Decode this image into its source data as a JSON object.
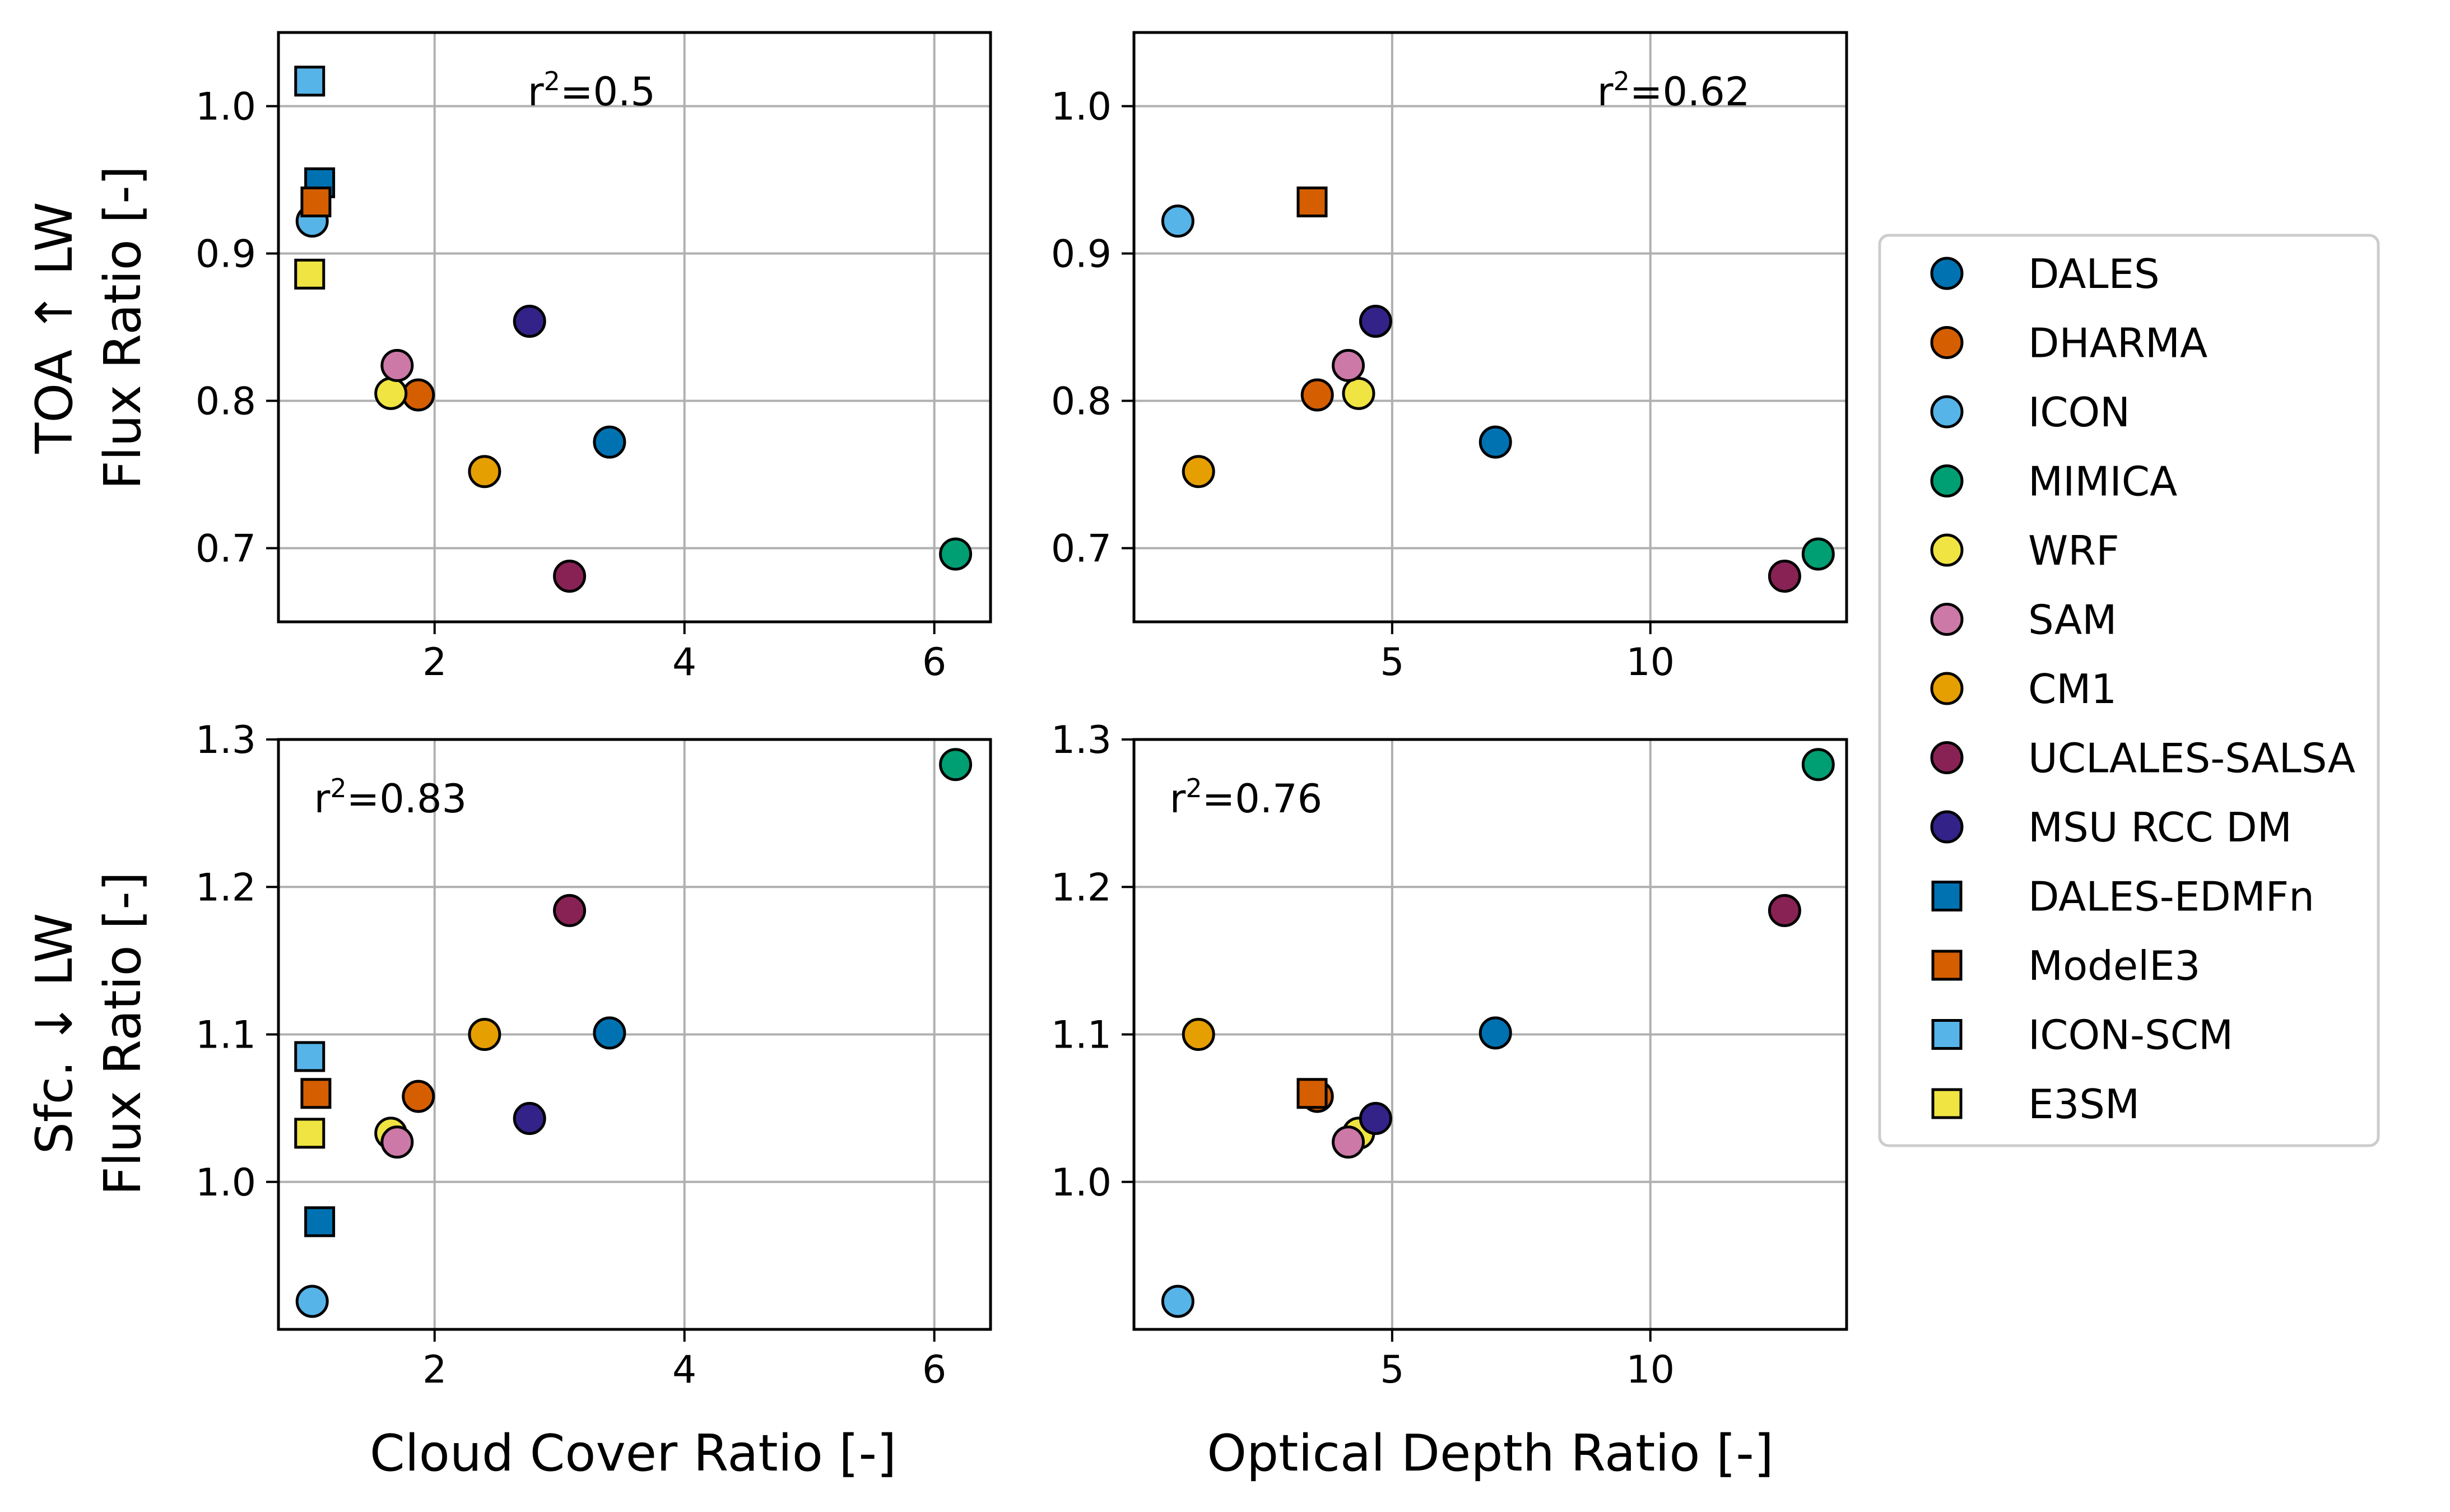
{
  "chart_data": {
    "type": "scatter",
    "grid": true,
    "legend_placement": "right",
    "rows": [
      {
        "ylabel_lines": [
          "TOA ↑ LW",
          "Flux Ratio [-]"
        ]
      },
      {
        "ylabel_lines": [
          "Sfc. ↓ LW",
          "Flux Ratio [-]"
        ]
      }
    ],
    "columns": [
      {
        "xlabel": "",
        "xlabel_bottom": "Cloud Cover Ratio [-]"
      },
      {
        "xlabel": "",
        "xlabel_bottom": "Optical Depth Ratio [-]"
      }
    ],
    "series": [
      {
        "name": "DALES",
        "marker": "circle",
        "color": "#0072B2",
        "cloud_cover": 3.4,
        "optical_depth": 7.0,
        "toa": 0.772,
        "sfc": 1.101
      },
      {
        "name": "DHARMA",
        "marker": "circle",
        "color": "#D55E00",
        "cloud_cover": 1.87,
        "optical_depth": 3.55,
        "toa": 0.804,
        "sfc": 1.058
      },
      {
        "name": "ICON",
        "marker": "circle",
        "color": "#56B4E9",
        "cloud_cover": 1.02,
        "optical_depth": 0.85,
        "toa": 0.922,
        "sfc": 0.919
      },
      {
        "name": "MIMICA",
        "marker": "circle",
        "color": "#009E73",
        "cloud_cover": 6.17,
        "optical_depth": 13.25,
        "toa": 0.696,
        "sfc": 1.283
      },
      {
        "name": "WRF",
        "marker": "circle",
        "color": "#F0E442",
        "cloud_cover": 1.65,
        "optical_depth": 4.35,
        "toa": 0.805,
        "sfc": 1.033
      },
      {
        "name": "SAM",
        "marker": "circle",
        "color": "#CC79A7",
        "cloud_cover": 1.7,
        "optical_depth": 4.15,
        "toa": 0.824,
        "sfc": 1.027
      },
      {
        "name": "CM1",
        "marker": "circle",
        "color": "#E69F00",
        "cloud_cover": 2.4,
        "optical_depth": 1.25,
        "toa": 0.752,
        "sfc": 1.1
      },
      {
        "name": "UCLALES-SALSA",
        "marker": "circle",
        "color": "#882255",
        "cloud_cover": 3.08,
        "optical_depth": 12.6,
        "toa": 0.681,
        "sfc": 1.184
      },
      {
        "name": "MSU RCC DM",
        "marker": "circle",
        "color": "#332288",
        "cloud_cover": 2.76,
        "optical_depth": 4.68,
        "toa": 0.854,
        "sfc": 1.043
      },
      {
        "name": "DALES-EDMFn",
        "marker": "square",
        "color": "#0072B2",
        "cloud_cover": 1.08,
        "optical_depth": null,
        "toa": 0.948,
        "sfc": 0.973
      },
      {
        "name": "ModelE3",
        "marker": "square",
        "color": "#D55E00",
        "cloud_cover": 1.05,
        "optical_depth": 3.45,
        "toa": 0.935,
        "sfc": 1.06
      },
      {
        "name": "ICON-SCM",
        "marker": "square",
        "color": "#56B4E9",
        "cloud_cover": 1.0,
        "optical_depth": null,
        "toa": 1.017,
        "sfc": 1.085
      },
      {
        "name": "E3SM",
        "marker": "square",
        "color": "#F0E442",
        "cloud_cover": 1.0,
        "optical_depth": null,
        "toa": 0.886,
        "sfc": 1.033
      }
    ],
    "panels": [
      {
        "row": 0,
        "col": 0,
        "x_key": "cloud_cover",
        "y_key": "toa",
        "xlim": [
          0.75,
          6.45
        ],
        "ylim": [
          0.65,
          1.05
        ],
        "xticks": [
          2,
          4,
          6
        ],
        "yticks": [
          0.7,
          0.8,
          0.9,
          1.0
        ],
        "xtick_labels": [
          "2",
          "4",
          "6"
        ],
        "ytick_labels": [
          "0.7",
          "0.8",
          "0.9",
          "1.0"
        ],
        "r2_label": "r²=0.5",
        "r2_prefix": "r",
        "r2_sup": "2",
        "r2_value": "=0.5",
        "r2_pos": "top-center"
      },
      {
        "row": 0,
        "col": 1,
        "x_key": "optical_depth",
        "y_key": "toa",
        "xlim": [
          0.0,
          13.8
        ],
        "ylim": [
          0.65,
          1.05
        ],
        "xticks": [
          5,
          10
        ],
        "yticks": [
          0.7,
          0.8,
          0.9,
          1.0
        ],
        "xtick_labels": [
          "5",
          "10"
        ],
        "ytick_labels": [
          "0.7",
          "0.8",
          "0.9",
          "1.0"
        ],
        "r2_label": "r²=0.62",
        "r2_prefix": "r",
        "r2_sup": "2",
        "r2_value": "=0.62",
        "r2_pos": "top-right"
      },
      {
        "row": 1,
        "col": 0,
        "x_key": "cloud_cover",
        "y_key": "sfc",
        "xlim": [
          0.75,
          6.45
        ],
        "ylim": [
          0.9,
          1.3
        ],
        "xticks": [
          2,
          4,
          6
        ],
        "yticks": [
          1.0,
          1.1,
          1.2,
          1.3
        ],
        "xtick_labels": [
          "2",
          "4",
          "6"
        ],
        "ytick_labels": [
          "1.0",
          "1.1",
          "1.2",
          "1.3"
        ],
        "r2_label": "r²=0.83",
        "r2_prefix": "r",
        "r2_sup": "2",
        "r2_value": "=0.83",
        "r2_pos": "top-left"
      },
      {
        "row": 1,
        "col": 1,
        "x_key": "optical_depth",
        "y_key": "sfc",
        "xlim": [
          0.0,
          13.8
        ],
        "ylim": [
          0.9,
          1.3
        ],
        "xticks": [
          5,
          10
        ],
        "yticks": [
          1.0,
          1.1,
          1.2,
          1.3
        ],
        "xtick_labels": [
          "5",
          "10"
        ],
        "ytick_labels": [
          "1.0",
          "1.1",
          "1.2",
          "1.3"
        ],
        "r2_label": "r²=0.76",
        "r2_prefix": "r",
        "r2_sup": "2",
        "r2_value": "=0.76",
        "r2_pos": "top-left"
      }
    ]
  }
}
